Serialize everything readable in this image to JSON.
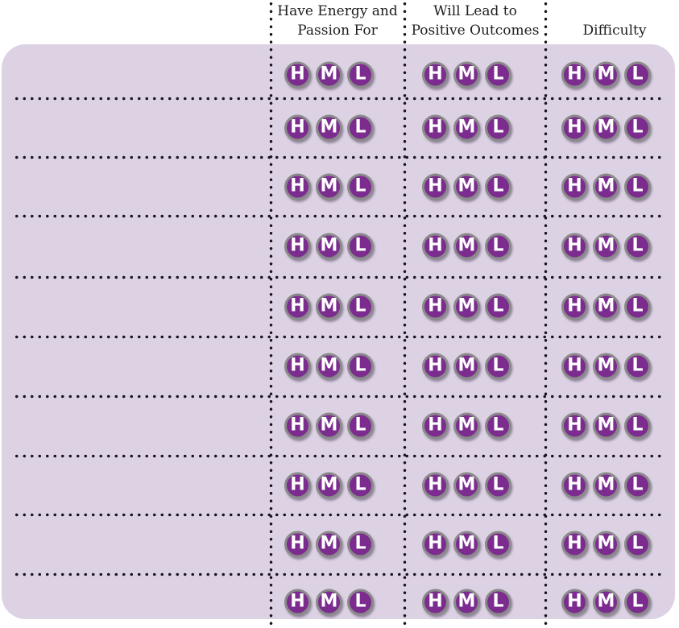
{
  "header": {
    "columns": [
      {
        "line1": "Have Energy and",
        "line2": "Passion For"
      },
      {
        "line1": "Will Lead to",
        "line2": "Positive Outcomes"
      },
      {
        "line1": "Difficulty"
      }
    ]
  },
  "rating": {
    "options": [
      {
        "label": "H"
      },
      {
        "label": "M"
      },
      {
        "label": "L"
      }
    ]
  },
  "rows": {
    "count": 10
  },
  "colors": {
    "page_background": "#ffffff",
    "card_background": "#dcd2e3",
    "badge_fill": "#7b2c8e",
    "badge_ring": "#8a8a8a",
    "badge_letter": "#ffffff",
    "dot_color": "#1c1520",
    "header_text": "#1e1e20"
  }
}
